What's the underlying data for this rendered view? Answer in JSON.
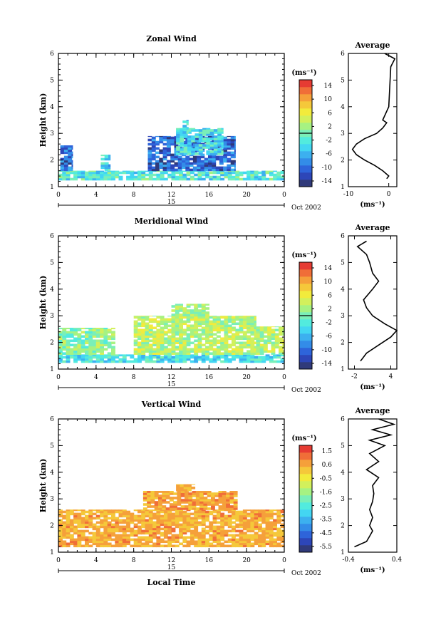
{
  "shared": {
    "x_ticks": [
      "0",
      "4",
      "8",
      "12",
      "16",
      "20",
      "0"
    ],
    "day_label": "15",
    "date_label": "Oct 2002",
    "x_axis_label": "Local Time",
    "y_axis_label": "Height (km)",
    "y_ticks": [
      "1",
      "2",
      "3",
      "4",
      "5",
      "6"
    ],
    "avg_title": "Average",
    "unit_label": "(ms⁻¹)"
  },
  "palette": [
    "#303a7a",
    "#2d46b8",
    "#2e64da",
    "#338ce8",
    "#3cb0ef",
    "#43d6f2",
    "#52ebde",
    "#7aefb8",
    "#a6f282",
    "#d2f05c",
    "#f2eb3c",
    "#f5c83a",
    "#f5a03a",
    "#f06e38",
    "#e63b33"
  ],
  "chart_data": [
    {
      "type": "heatmap",
      "title": "Zonal Wind",
      "ylabel": "Height (km)",
      "xlabel": "",
      "xlim": [
        0,
        24
      ],
      "ylim": [
        1,
        6
      ],
      "colorbar": {
        "range": [
          -15,
          15
        ],
        "ticks": [
          "14",
          "10",
          "6",
          "2",
          "-2",
          "-6",
          "-10",
          "-14"
        ],
        "zero_line": true
      },
      "value_bias": -6,
      "value_spread": 8,
      "regions": [
        {
          "x": [
            0,
            24
          ],
          "y": [
            1.25,
            1.6
          ],
          "v": -2
        },
        {
          "x": [
            0.2,
            1.5
          ],
          "y": [
            1.6,
            2.55
          ],
          "v": -10
        },
        {
          "x": [
            4.5,
            5.5
          ],
          "y": [
            1.6,
            2.2
          ],
          "v": -4
        },
        {
          "x": [
            9.5,
            18.8
          ],
          "y": [
            1.6,
            2.9
          ],
          "v": -10
        },
        {
          "x": [
            12.5,
            17.5
          ],
          "y": [
            2.2,
            3.2
          ],
          "v": -3
        },
        {
          "x": [
            13.2,
            13.8
          ],
          "y": [
            3.0,
            3.5
          ],
          "v": -4
        }
      ],
      "average_profile": {
        "xlim": [
          -10,
          2
        ],
        "x_ticks": [
          "-10",
          "0"
        ],
        "height": [
          1.3,
          1.4,
          1.6,
          1.8,
          2.0,
          2.2,
          2.4,
          2.6,
          2.8,
          3.0,
          3.2,
          3.4,
          3.5,
          4.0,
          5.5,
          5.8,
          6.0
        ],
        "value": [
          -0.5,
          0,
          -1.5,
          -3.5,
          -6,
          -8,
          -9,
          -8,
          -6,
          -3,
          -1.5,
          -0.5,
          -1.5,
          0,
          0.5,
          1.5,
          -1
        ]
      }
    },
    {
      "type": "heatmap",
      "title": "Meridional Wind",
      "ylabel": "Height (km)",
      "xlabel": "",
      "xlim": [
        0,
        24
      ],
      "ylim": [
        1,
        6
      ],
      "colorbar": {
        "range": [
          -15,
          15
        ],
        "ticks": [
          "14",
          "10",
          "6",
          "2",
          "-2",
          "-6",
          "-10",
          "-14"
        ],
        "zero_line": true
      },
      "value_bias": 1,
      "value_spread": 6,
      "regions": [
        {
          "x": [
            0,
            24
          ],
          "y": [
            1.25,
            1.55
          ],
          "v": -3
        },
        {
          "x": [
            0,
            6
          ],
          "y": [
            1.55,
            2.55
          ],
          "v": 1
        },
        {
          "x": [
            8,
            21
          ],
          "y": [
            1.55,
            3.0
          ],
          "v": 3
        },
        {
          "x": [
            12,
            16
          ],
          "y": [
            3.0,
            3.45
          ],
          "v": 2
        },
        {
          "x": [
            21,
            24
          ],
          "y": [
            1.55,
            2.6
          ],
          "v": 3
        }
      ],
      "average_profile": {
        "xlim": [
          -3,
          5
        ],
        "x_ticks": [
          "-2",
          "4"
        ],
        "height": [
          1.3,
          1.6,
          1.9,
          2.2,
          2.45,
          2.7,
          3.0,
          3.3,
          3.6,
          4.0,
          4.3,
          4.6,
          5.0,
          5.3,
          5.6,
          5.8
        ],
        "value": [
          -1,
          0,
          2,
          4,
          5,
          3,
          1,
          0,
          -0.5,
          1,
          2,
          1,
          0.5,
          0,
          -1.5,
          0
        ]
      }
    },
    {
      "type": "heatmap",
      "title": "Vertical Wind",
      "ylabel": "Height (km)",
      "xlabel": "Local Time",
      "xlim": [
        0,
        24
      ],
      "ylim": [
        1,
        6
      ],
      "colorbar": {
        "range": [
          -6.0,
          2.0
        ],
        "ticks": [
          "1.5",
          "0.6",
          "-0.5",
          "-1.6",
          "-2.5",
          "-3.5",
          "-4.5",
          "-5.5"
        ],
        "zero_line": false
      },
      "value_bias": 0.3,
      "value_spread": 1.0,
      "regions": [
        {
          "x": [
            0,
            24
          ],
          "y": [
            1.2,
            2.6
          ],
          "v": 0.5
        },
        {
          "x": [
            9,
            19
          ],
          "y": [
            2.6,
            3.3
          ],
          "v": 0.7
        },
        {
          "x": [
            12.5,
            14.5
          ],
          "y": [
            3.3,
            3.55
          ],
          "v": 0.5
        }
      ],
      "average_profile": {
        "xlim": [
          -0.4,
          0.4
        ],
        "x_ticks": [
          "-0.4",
          "0.4"
        ],
        "height": [
          1.2,
          1.4,
          1.6,
          1.8,
          2.0,
          2.3,
          2.6,
          2.9,
          3.2,
          3.5,
          3.8,
          4.1,
          4.4,
          4.7,
          5.0,
          5.2,
          5.4,
          5.6,
          5.8,
          6.0
        ],
        "value": [
          -0.3,
          -0.1,
          -0.05,
          0,
          -0.05,
          0,
          -0.05,
          0,
          0.02,
          0,
          0.1,
          -0.1,
          0.1,
          -0.05,
          0.2,
          -0.05,
          0.3,
          0,
          0.35,
          0.1
        ]
      }
    }
  ]
}
